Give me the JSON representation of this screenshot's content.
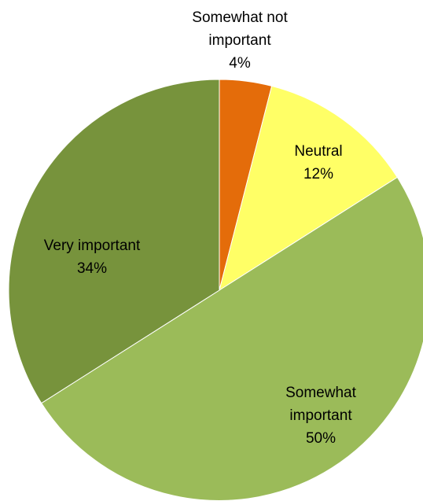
{
  "chart_data": {
    "type": "pie",
    "title": "",
    "slices": [
      {
        "label": [
          "Somewhat not",
          "important"
        ],
        "percent_label": "4%",
        "value": 4,
        "color": "#E46C0A"
      },
      {
        "label": [
          "Neutral"
        ],
        "percent_label": "12%",
        "value": 12,
        "color": "#FFFF66"
      },
      {
        "label": [
          "Somewhat",
          "important"
        ],
        "percent_label": "50%",
        "value": 50,
        "color": "#9BBB59"
      },
      {
        "label": [
          "Very important"
        ],
        "percent_label": "34%",
        "value": 34,
        "color": "#77933C"
      }
    ],
    "start_angle_deg": 0,
    "direction": "clockwise",
    "legend": "none",
    "data_labels": "category-and-percent"
  }
}
